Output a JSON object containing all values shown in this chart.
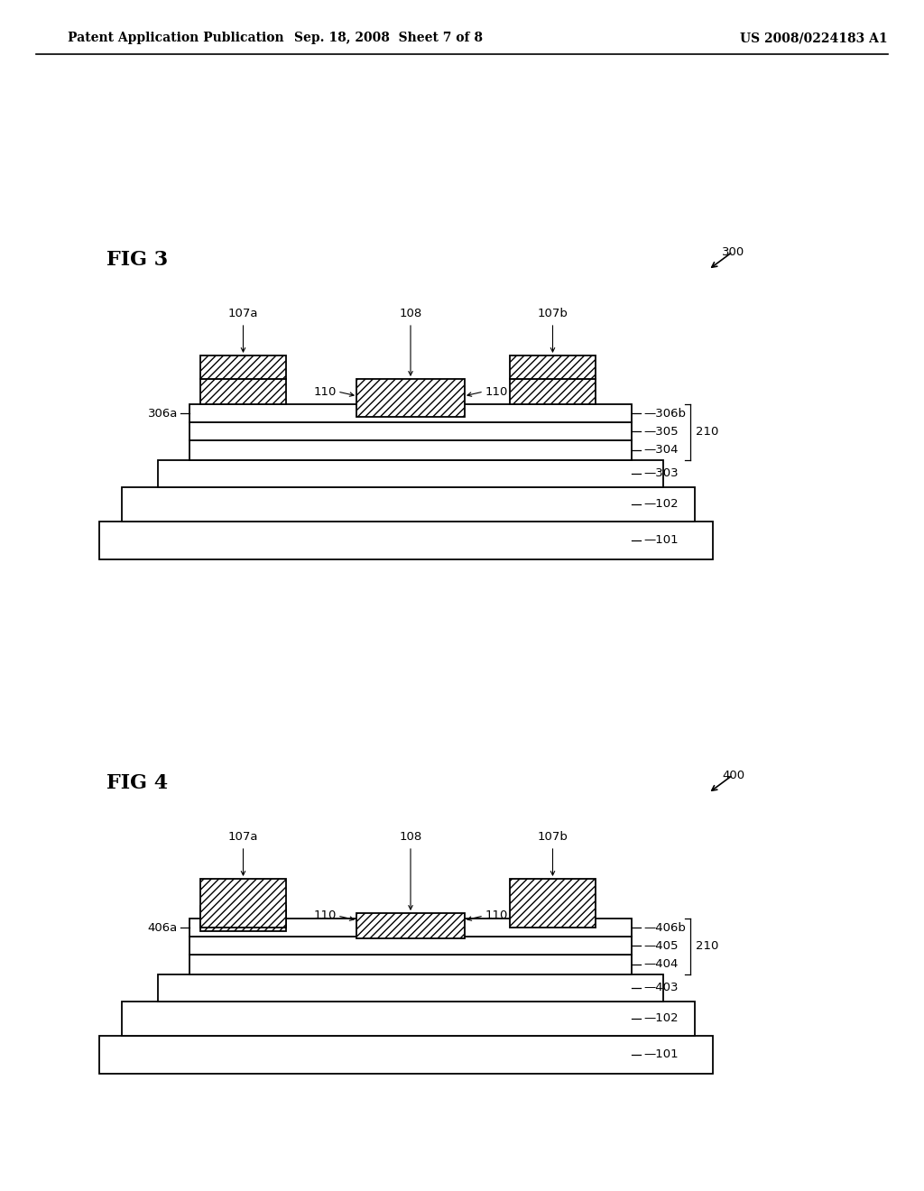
{
  "bg_color": "#ffffff",
  "header_left": "Patent Application Publication",
  "header_center": "Sep. 18, 2008  Sheet 7 of 8",
  "header_right": "US 2008/0224183 A1",
  "fig3_label": "FIG 3",
  "fig3_ref": "300",
  "fig4_label": "FIG 4",
  "fig4_ref": "400",
  "label_210": "210",
  "lw": 1.3
}
